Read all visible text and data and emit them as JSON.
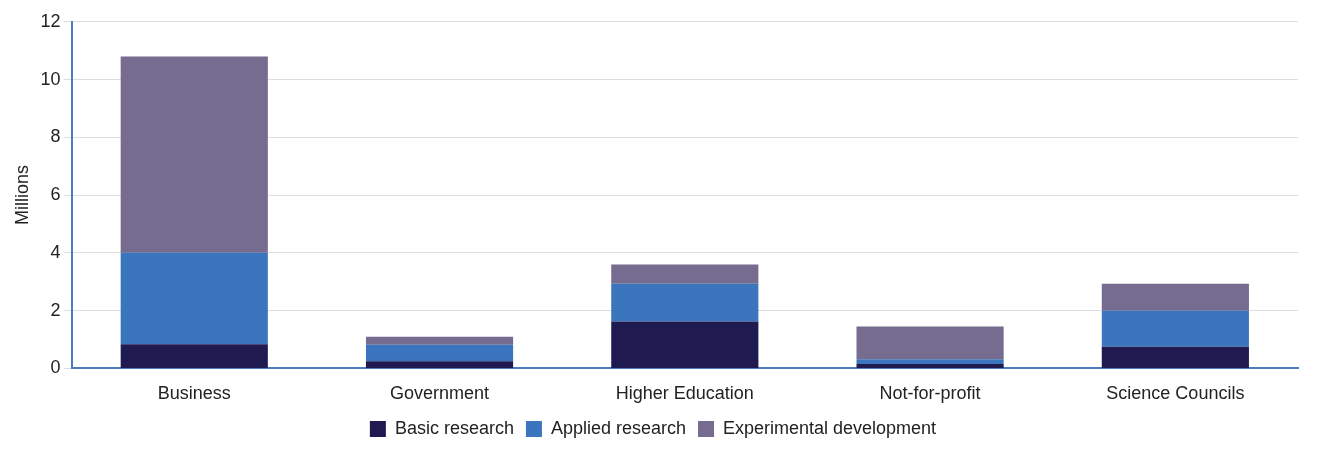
{
  "chart_data": {
    "type": "bar",
    "stacked": true,
    "ylabel": "Millions",
    "categories": [
      "Business",
      "Government",
      "Higher Education",
      "Not-for-profit",
      "Science Councils"
    ],
    "series": [
      {
        "name": "Basic research",
        "color": "#1f1a4f",
        "values": [
          0.84,
          0.25,
          1.62,
          0.15,
          0.75
        ]
      },
      {
        "name": "Applied research",
        "color": "#3a75bd",
        "values": [
          3.16,
          0.57,
          1.31,
          0.17,
          1.25
        ]
      },
      {
        "name": "Experimental development",
        "color": "#756c8f",
        "values": [
          6.8,
          0.28,
          0.67,
          1.13,
          0.93
        ]
      }
    ],
    "ylim": [
      0,
      12
    ],
    "yticks": [
      0,
      2,
      4,
      6,
      8,
      10,
      12
    ],
    "grid": "y",
    "legend": "bottom"
  }
}
